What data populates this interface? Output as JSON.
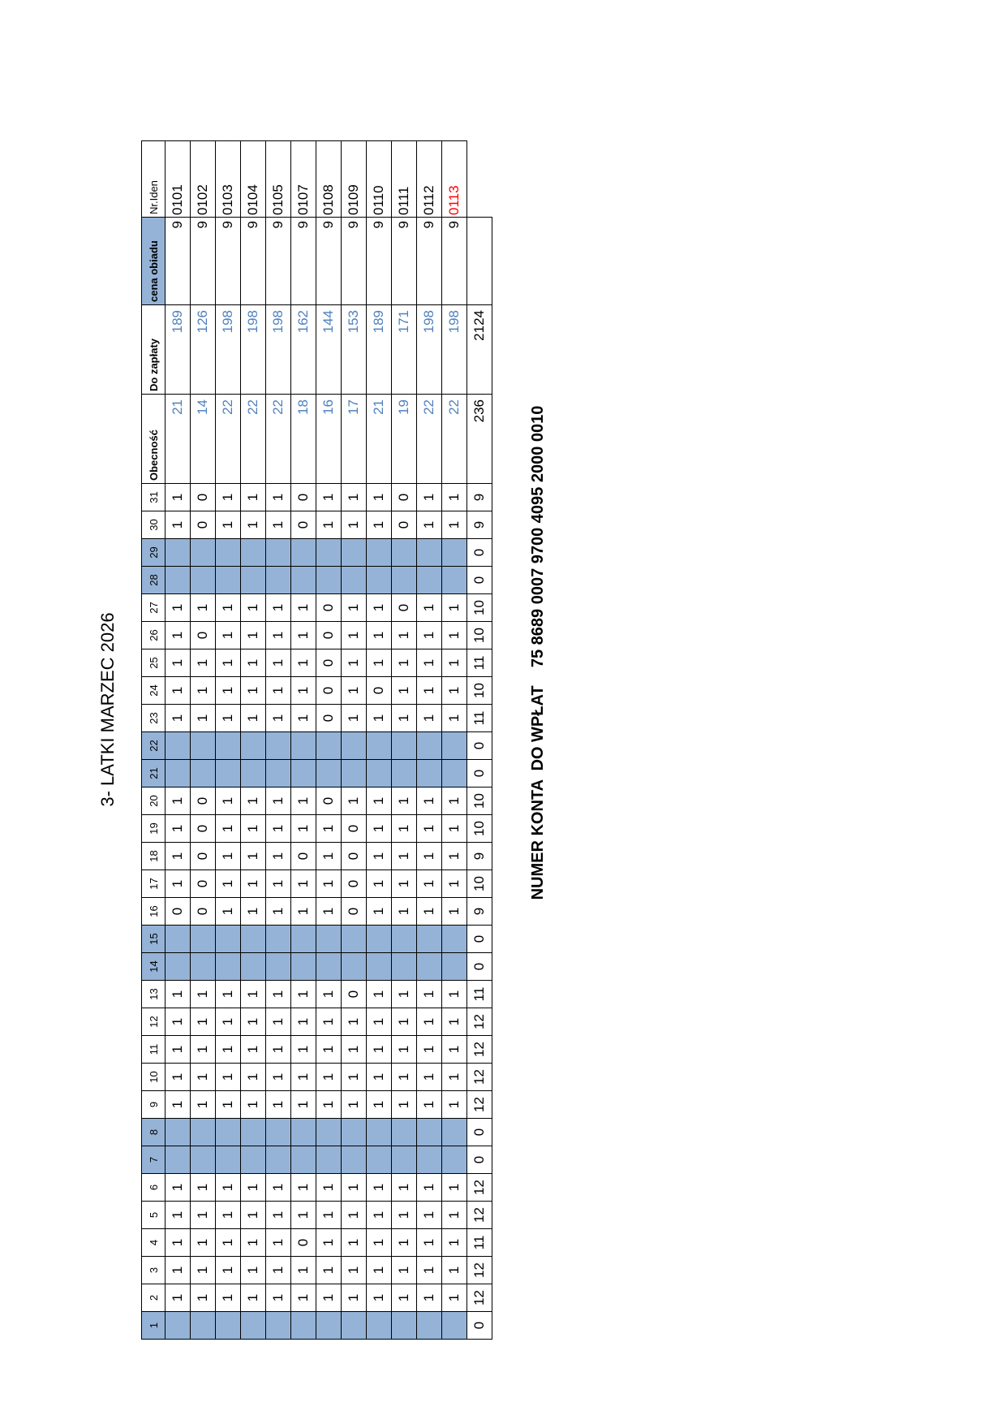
{
  "title": "3- LATKI MARZEC 2026",
  "account": {
    "label": "NUMER KONTA  DO WPŁAT",
    "number": "75 8689 0007 9700 4095 2000 0010"
  },
  "colors": {
    "weekend_fill": "#95b3d7",
    "value_blue": "#4f81bd",
    "highlight_red": "#ff0000"
  },
  "table": {
    "days": [
      "1",
      "2",
      "3",
      "4",
      "5",
      "6",
      "7",
      "8",
      "9",
      "10",
      "11",
      "12",
      "13",
      "14",
      "15",
      "16",
      "17",
      "18",
      "19",
      "20",
      "21",
      "22",
      "23",
      "24",
      "25",
      "26",
      "27",
      "28",
      "29",
      "30",
      "31"
    ],
    "headers": {
      "obecnosc": "Obecność",
      "do_zaplaty": "Do zapłaty",
      "cena_obiadu": "cena obiadu",
      "nr_iden": "Nr.Iden"
    },
    "rows": [
      {
        "days": [
          "",
          "1",
          "1",
          "1",
          "1",
          "1",
          "",
          "",
          "1",
          "1",
          "1",
          "1",
          "1",
          "",
          "",
          "0",
          "1",
          "1",
          "1",
          "1",
          "",
          "",
          "1",
          "1",
          "1",
          "1",
          "1",
          "",
          "",
          "1",
          "1"
        ],
        "obecnosc": "21",
        "do_zaplaty": "189",
        "cena": "9",
        "nr": "0101"
      },
      {
        "days": [
          "",
          "1",
          "1",
          "1",
          "1",
          "1",
          "",
          "",
          "1",
          "1",
          "1",
          "1",
          "1",
          "",
          "",
          "0",
          "0",
          "0",
          "0",
          "0",
          "",
          "",
          "1",
          "1",
          "1",
          "0",
          "1",
          "",
          "",
          "0",
          "0"
        ],
        "obecnosc": "14",
        "do_zaplaty": "126",
        "cena": "9",
        "nr": "0102"
      },
      {
        "days": [
          "",
          "1",
          "1",
          "1",
          "1",
          "1",
          "",
          "",
          "1",
          "1",
          "1",
          "1",
          "1",
          "",
          "",
          "1",
          "1",
          "1",
          "1",
          "1",
          "",
          "",
          "1",
          "1",
          "1",
          "1",
          "1",
          "",
          "",
          "1",
          "1"
        ],
        "obecnosc": "22",
        "do_zaplaty": "198",
        "cena": "9",
        "nr": "0103"
      },
      {
        "days": [
          "",
          "1",
          "1",
          "1",
          "1",
          "1",
          "",
          "",
          "1",
          "1",
          "1",
          "1",
          "1",
          "",
          "",
          "1",
          "1",
          "1",
          "1",
          "1",
          "",
          "",
          "1",
          "1",
          "1",
          "1",
          "1",
          "",
          "",
          "1",
          "1"
        ],
        "obecnosc": "22",
        "do_zaplaty": "198",
        "cena": "9",
        "nr": "0104"
      },
      {
        "days": [
          "",
          "1",
          "1",
          "1",
          "1",
          "1",
          "",
          "",
          "1",
          "1",
          "1",
          "1",
          "1",
          "",
          "",
          "1",
          "1",
          "1",
          "1",
          "1",
          "",
          "",
          "1",
          "1",
          "1",
          "1",
          "1",
          "",
          "",
          "1",
          "1"
        ],
        "obecnosc": "22",
        "do_zaplaty": "198",
        "cena": "9",
        "nr": "0105"
      },
      {
        "days": [
          "",
          "1",
          "1",
          "0",
          "1",
          "1",
          "",
          "",
          "1",
          "1",
          "1",
          "1",
          "1",
          "",
          "",
          "1",
          "1",
          "0",
          "1",
          "1",
          "",
          "",
          "1",
          "1",
          "1",
          "1",
          "1",
          "",
          "",
          "0",
          "0"
        ],
        "obecnosc": "18",
        "do_zaplaty": "162",
        "cena": "9",
        "nr": "0107"
      },
      {
        "days": [
          "",
          "1",
          "1",
          "1",
          "1",
          "1",
          "",
          "",
          "1",
          "1",
          "1",
          "1",
          "1",
          "",
          "",
          "1",
          "1",
          "1",
          "1",
          "0",
          "",
          "",
          "0",
          "0",
          "0",
          "0",
          "0",
          "",
          "",
          "1",
          "1"
        ],
        "obecnosc": "16",
        "do_zaplaty": "144",
        "cena": "9",
        "nr": "0108"
      },
      {
        "days": [
          "",
          "1",
          "1",
          "1",
          "1",
          "1",
          "",
          "",
          "1",
          "1",
          "1",
          "1",
          "0",
          "",
          "",
          "0",
          "0",
          "0",
          "0",
          "1",
          "",
          "",
          "1",
          "1",
          "1",
          "1",
          "1",
          "",
          "",
          "1",
          "1"
        ],
        "obecnosc": "17",
        "do_zaplaty": "153",
        "cena": "9",
        "nr": "0109"
      },
      {
        "days": [
          "",
          "1",
          "1",
          "1",
          "1",
          "1",
          "",
          "",
          "1",
          "1",
          "1",
          "1",
          "1",
          "",
          "",
          "1",
          "1",
          "1",
          "1",
          "1",
          "",
          "",
          "1",
          "0",
          "1",
          "1",
          "1",
          "",
          "",
          "1",
          "1"
        ],
        "obecnosc": "21",
        "do_zaplaty": "189",
        "cena": "9",
        "nr": "0110"
      },
      {
        "days": [
          "",
          "1",
          "1",
          "1",
          "1",
          "1",
          "",
          "",
          "1",
          "1",
          "1",
          "1",
          "1",
          "",
          "",
          "1",
          "1",
          "1",
          "1",
          "1",
          "",
          "",
          "1",
          "1",
          "1",
          "1",
          "0",
          "",
          "",
          "0",
          "0"
        ],
        "obecnosc": "19",
        "do_zaplaty": "171",
        "cena": "9",
        "nr": "0111"
      },
      {
        "days": [
          "",
          "1",
          "1",
          "1",
          "1",
          "1",
          "",
          "",
          "1",
          "1",
          "1",
          "1",
          "1",
          "",
          "",
          "1",
          "1",
          "1",
          "1",
          "1",
          "",
          "",
          "1",
          "1",
          "1",
          "1",
          "1",
          "",
          "",
          "1",
          "1"
        ],
        "obecnosc": "22",
        "do_zaplaty": "198",
        "cena": "9",
        "nr": "0112"
      },
      {
        "days": [
          "",
          "1",
          "1",
          "1",
          "1",
          "1",
          "",
          "",
          "1",
          "1",
          "1",
          "1",
          "1",
          "",
          "",
          "1",
          "1",
          "1",
          "1",
          "1",
          "",
          "",
          "1",
          "1",
          "1",
          "1",
          "1",
          "",
          "",
          "1",
          "1"
        ],
        "obecnosc": "22",
        "do_zaplaty": "198",
        "cena": "9",
        "nr": "0113",
        "nr_highlight": true
      }
    ],
    "totals": {
      "days": [
        "0",
        "12",
        "12",
        "11",
        "12",
        "12",
        "0",
        "0",
        "12",
        "12",
        "12",
        "12",
        "11",
        "0",
        "0",
        "9",
        "10",
        "9",
        "10",
        "10",
        "0",
        "0",
        "11",
        "10",
        "11",
        "10",
        "10",
        "0",
        "0",
        "9",
        "9"
      ],
      "obecnosc": "236",
      "do_zaplaty": "2124"
    },
    "weekend_columns": [
      1,
      7,
      8,
      14,
      15,
      21,
      22,
      28,
      29
    ]
  }
}
